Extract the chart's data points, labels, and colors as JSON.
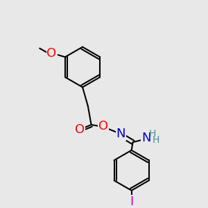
{
  "bg_color": "#e8e8e8",
  "bond_color": "#000000",
  "bond_width": 1.5,
  "atom_colors": {
    "O": "#ff0000",
    "N": "#0000cc",
    "I": "#cc00cc",
    "H": "#4a9090",
    "C": "#000000"
  },
  "font_size_atom": 13,
  "font_size_small": 11
}
